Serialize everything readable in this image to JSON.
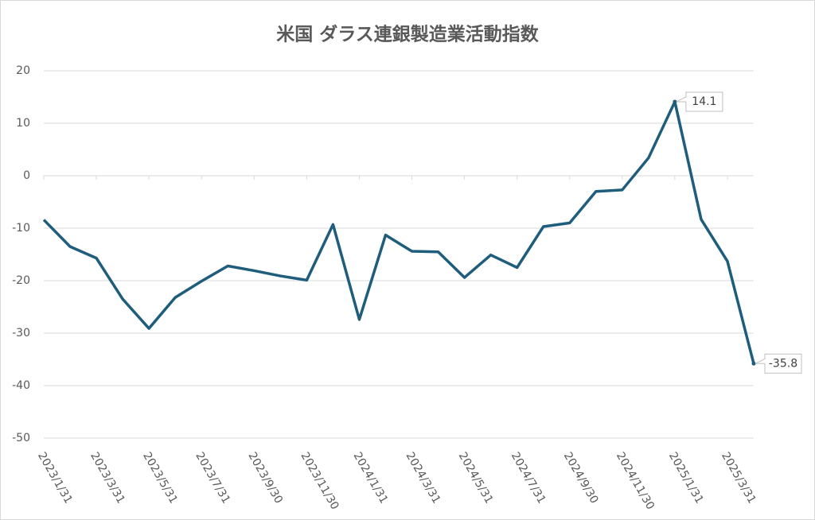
{
  "chart_data": {
    "type": "line",
    "title": "米国 ダラス連銀製造業活動指数",
    "categories": [
      "2023/1/31",
      null,
      "2023/3/31",
      null,
      "2023/5/31",
      null,
      "2023/7/31",
      null,
      "2023/9/30",
      null,
      "2023/11/30",
      null,
      "2024/1/31",
      null,
      "2024/3/31",
      null,
      "2024/5/31",
      null,
      "2024/7/31",
      null,
      "2024/9/30",
      null,
      "2024/11/30",
      null,
      "2025/1/31",
      null,
      "2025/3/31",
      null
    ],
    "values": [
      -8.4,
      -13.5,
      -15.7,
      -23.5,
      -29.1,
      -23.2,
      -20.1,
      -17.2,
      -18.1,
      -19.1,
      -19.9,
      -9.3,
      -27.4,
      -11.3,
      -14.4,
      -14.5,
      -19.4,
      -15.1,
      -17.5,
      -9.7,
      -9.0,
      -3.0,
      -2.7,
      3.4,
      14.1,
      -8.3,
      -16.3,
      -35.8
    ],
    "color": "#1f5d7c",
    "labeled_points": [
      24,
      27
    ],
    "ylim": [
      -50,
      20
    ],
    "yticks": [
      -50,
      -40,
      -30,
      -20,
      -10,
      0,
      10,
      20
    ],
    "grid": true
  }
}
